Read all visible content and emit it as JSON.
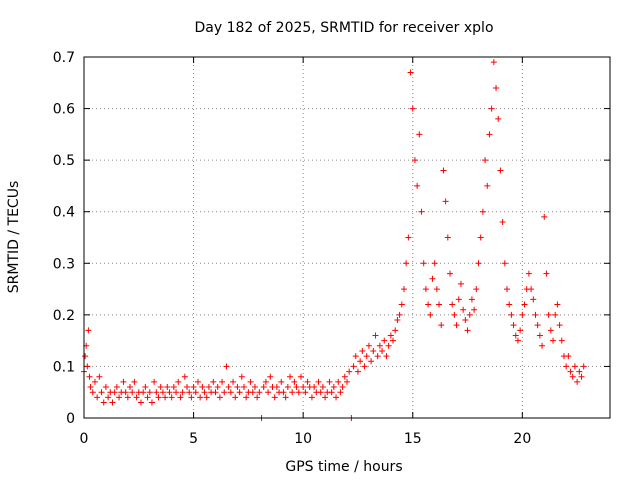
{
  "chart_data": {
    "type": "scatter",
    "title": "Day 182 of 2025, SRMTID for receiver xplo",
    "xlabel": "GPS time / hours",
    "ylabel": "SRMTID / TECUs",
    "xlim": [
      0,
      24
    ],
    "ylim": [
      0,
      0.7
    ],
    "xticks": [
      0,
      5,
      10,
      15,
      20
    ],
    "yticks": [
      0,
      0.1,
      0.2,
      0.3,
      0.4,
      0.5,
      0.6,
      0.7
    ],
    "xtick_labels": [
      "0",
      "5",
      "10",
      "15",
      "20"
    ],
    "ytick_labels": [
      "0",
      "0.1",
      "0.2",
      "0.3",
      "0.4",
      "0.5",
      "0.6",
      "0.7"
    ],
    "grid": true,
    "marker": "+",
    "color": "#ff0000",
    "series": [
      {
        "name": "SRMTID",
        "points": [
          [
            0.0,
            0.09
          ],
          [
            0.05,
            0.12
          ],
          [
            0.1,
            0.14
          ],
          [
            0.15,
            0.1
          ],
          [
            0.2,
            0.17
          ],
          [
            0.25,
            0.08
          ],
          [
            0.3,
            0.06
          ],
          [
            0.4,
            0.05
          ],
          [
            0.5,
            0.07
          ],
          [
            0.6,
            0.04
          ],
          [
            0.7,
            0.08
          ],
          [
            0.8,
            0.05
          ],
          [
            0.9,
            0.03
          ],
          [
            1.0,
            0.06
          ],
          [
            1.1,
            0.04
          ],
          [
            1.2,
            0.05
          ],
          [
            1.3,
            0.03
          ],
          [
            1.4,
            0.05
          ],
          [
            1.5,
            0.06
          ],
          [
            1.6,
            0.04
          ],
          [
            1.7,
            0.05
          ],
          [
            1.8,
            0.07
          ],
          [
            1.9,
            0.05
          ],
          [
            2.0,
            0.04
          ],
          [
            2.1,
            0.06
          ],
          [
            2.2,
            0.05
          ],
          [
            2.3,
            0.07
          ],
          [
            2.4,
            0.04
          ],
          [
            2.5,
            0.05
          ],
          [
            2.6,
            0.03
          ],
          [
            2.7,
            0.05
          ],
          [
            2.8,
            0.06
          ],
          [
            2.9,
            0.04
          ],
          [
            3.0,
            0.05
          ],
          [
            3.1,
            0.03
          ],
          [
            3.2,
            0.07
          ],
          [
            3.3,
            0.05
          ],
          [
            3.4,
            0.04
          ],
          [
            3.5,
            0.06
          ],
          [
            3.6,
            0.05
          ],
          [
            3.7,
            0.04
          ],
          [
            3.8,
            0.06
          ],
          [
            3.9,
            0.05
          ],
          [
            4.0,
            0.04
          ],
          [
            4.1,
            0.06
          ],
          [
            4.2,
            0.05
          ],
          [
            4.3,
            0.07
          ],
          [
            4.4,
            0.04
          ],
          [
            4.5,
            0.05
          ],
          [
            4.6,
            0.08
          ],
          [
            4.7,
            0.06
          ],
          [
            4.8,
            0.05
          ],
          [
            4.9,
            0.04
          ],
          [
            5.0,
            0.06
          ],
          [
            5.1,
            0.05
          ],
          [
            5.2,
            0.07
          ],
          [
            5.3,
            0.04
          ],
          [
            5.4,
            0.06
          ],
          [
            5.5,
            0.05
          ],
          [
            5.6,
            0.04
          ],
          [
            5.7,
            0.06
          ],
          [
            5.8,
            0.05
          ],
          [
            5.9,
            0.07
          ],
          [
            6.0,
            0.05
          ],
          [
            6.1,
            0.06
          ],
          [
            6.2,
            0.04
          ],
          [
            6.3,
            0.07
          ],
          [
            6.4,
            0.05
          ],
          [
            6.5,
            0.1
          ],
          [
            6.6,
            0.06
          ],
          [
            6.7,
            0.05
          ],
          [
            6.8,
            0.07
          ],
          [
            6.9,
            0.04
          ],
          [
            7.0,
            0.06
          ],
          [
            7.1,
            0.05
          ],
          [
            7.2,
            0.08
          ],
          [
            7.3,
            0.06
          ],
          [
            7.4,
            0.04
          ],
          [
            7.5,
            0.05
          ],
          [
            7.6,
            0.07
          ],
          [
            7.7,
            0.05
          ],
          [
            7.8,
            0.06
          ],
          [
            7.9,
            0.04
          ],
          [
            8.0,
            0.05
          ],
          [
            8.1,
            0.0
          ],
          [
            8.2,
            0.06
          ],
          [
            8.3,
            0.07
          ],
          [
            8.4,
            0.05
          ],
          [
            8.5,
            0.08
          ],
          [
            8.6,
            0.06
          ],
          [
            8.7,
            0.04
          ],
          [
            8.8,
            0.06
          ],
          [
            8.9,
            0.05
          ],
          [
            9.0,
            0.07
          ],
          [
            9.1,
            0.05
          ],
          [
            9.2,
            0.04
          ],
          [
            9.3,
            0.06
          ],
          [
            9.4,
            0.08
          ],
          [
            9.5,
            0.05
          ],
          [
            9.6,
            0.07
          ],
          [
            9.7,
            0.06
          ],
          [
            9.8,
            0.05
          ],
          [
            9.9,
            0.08
          ],
          [
            10.0,
            0.06
          ],
          [
            10.1,
            0.05
          ],
          [
            10.2,
            0.07
          ],
          [
            10.3,
            0.06
          ],
          [
            10.4,
            0.04
          ],
          [
            10.5,
            0.06
          ],
          [
            10.6,
            0.05
          ],
          [
            10.7,
            0.07
          ],
          [
            10.8,
            0.05
          ],
          [
            10.9,
            0.06
          ],
          [
            11.0,
            0.04
          ],
          [
            11.1,
            0.05
          ],
          [
            11.2,
            0.07
          ],
          [
            11.3,
            0.05
          ],
          [
            11.4,
            0.06
          ],
          [
            11.5,
            0.04
          ],
          [
            11.6,
            0.07
          ],
          [
            11.7,
            0.05
          ],
          [
            11.8,
            0.06
          ],
          [
            11.9,
            0.08
          ],
          [
            12.0,
            0.07
          ],
          [
            12.1,
            0.09
          ],
          [
            12.2,
            0.0
          ],
          [
            12.3,
            0.1
          ],
          [
            12.4,
            0.12
          ],
          [
            12.5,
            0.09
          ],
          [
            12.6,
            0.11
          ],
          [
            12.7,
            0.13
          ],
          [
            12.8,
            0.1
          ],
          [
            12.9,
            0.12
          ],
          [
            13.0,
            0.14
          ],
          [
            13.1,
            0.11
          ],
          [
            13.2,
            0.13
          ],
          [
            13.3,
            0.16
          ],
          [
            13.4,
            0.12
          ],
          [
            13.5,
            0.14
          ],
          [
            13.6,
            0.13
          ],
          [
            13.7,
            0.15
          ],
          [
            13.8,
            0.12
          ],
          [
            13.9,
            0.14
          ],
          [
            14.0,
            0.16
          ],
          [
            14.1,
            0.15
          ],
          [
            14.2,
            0.17
          ],
          [
            14.3,
            0.19
          ],
          [
            14.4,
            0.2
          ],
          [
            14.5,
            0.22
          ],
          [
            14.6,
            0.25
          ],
          [
            14.7,
            0.3
          ],
          [
            14.8,
            0.35
          ],
          [
            14.9,
            0.67
          ],
          [
            15.0,
            0.6
          ],
          [
            15.1,
            0.5
          ],
          [
            15.2,
            0.45
          ],
          [
            15.3,
            0.55
          ],
          [
            15.4,
            0.4
          ],
          [
            15.5,
            0.3
          ],
          [
            15.6,
            0.25
          ],
          [
            15.7,
            0.22
          ],
          [
            15.8,
            0.2
          ],
          [
            15.9,
            0.27
          ],
          [
            16.0,
            0.3
          ],
          [
            16.1,
            0.25
          ],
          [
            16.2,
            0.22
          ],
          [
            16.3,
            0.18
          ],
          [
            16.4,
            0.48
          ],
          [
            16.5,
            0.42
          ],
          [
            16.6,
            0.35
          ],
          [
            16.7,
            0.28
          ],
          [
            16.8,
            0.22
          ],
          [
            16.9,
            0.2
          ],
          [
            17.0,
            0.18
          ],
          [
            17.1,
            0.23
          ],
          [
            17.2,
            0.26
          ],
          [
            17.3,
            0.21
          ],
          [
            17.4,
            0.19
          ],
          [
            17.5,
            0.17
          ],
          [
            17.6,
            0.2
          ],
          [
            17.7,
            0.23
          ],
          [
            17.8,
            0.21
          ],
          [
            17.9,
            0.25
          ],
          [
            18.0,
            0.3
          ],
          [
            18.1,
            0.35
          ],
          [
            18.2,
            0.4
          ],
          [
            18.3,
            0.5
          ],
          [
            18.4,
            0.45
          ],
          [
            18.5,
            0.55
          ],
          [
            18.6,
            0.6
          ],
          [
            18.7,
            0.69
          ],
          [
            18.8,
            0.64
          ],
          [
            18.9,
            0.58
          ],
          [
            19.0,
            0.48
          ],
          [
            19.1,
            0.38
          ],
          [
            19.2,
            0.3
          ],
          [
            19.3,
            0.25
          ],
          [
            19.4,
            0.22
          ],
          [
            19.5,
            0.2
          ],
          [
            19.6,
            0.18
          ],
          [
            19.7,
            0.16
          ],
          [
            19.8,
            0.15
          ],
          [
            19.9,
            0.17
          ],
          [
            20.0,
            0.2
          ],
          [
            20.1,
            0.22
          ],
          [
            20.2,
            0.25
          ],
          [
            20.3,
            0.28
          ],
          [
            20.4,
            0.25
          ],
          [
            20.5,
            0.23
          ],
          [
            20.6,
            0.2
          ],
          [
            20.7,
            0.18
          ],
          [
            20.8,
            0.16
          ],
          [
            20.9,
            0.14
          ],
          [
            21.0,
            0.39
          ],
          [
            21.1,
            0.28
          ],
          [
            21.2,
            0.2
          ],
          [
            21.3,
            0.17
          ],
          [
            21.4,
            0.15
          ],
          [
            21.5,
            0.2
          ],
          [
            21.6,
            0.22
          ],
          [
            21.7,
            0.18
          ],
          [
            21.8,
            0.15
          ],
          [
            21.9,
            0.12
          ],
          [
            22.0,
            0.1
          ],
          [
            22.1,
            0.12
          ],
          [
            22.2,
            0.09
          ],
          [
            22.3,
            0.08
          ],
          [
            22.4,
            0.1
          ],
          [
            22.5,
            0.07
          ],
          [
            22.6,
            0.09
          ],
          [
            22.7,
            0.08
          ],
          [
            22.8,
            0.1
          ]
        ]
      }
    ]
  }
}
